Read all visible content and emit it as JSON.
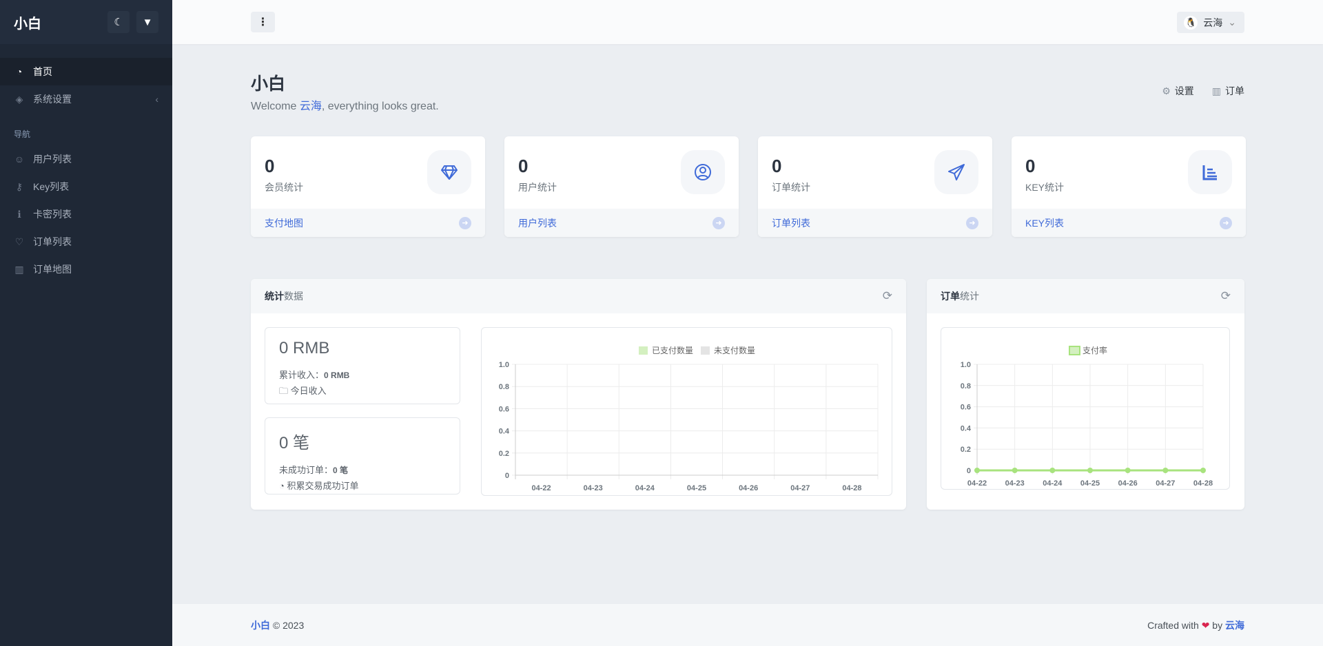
{
  "sidebar": {
    "logo": "小白",
    "theme_icon": "moon-icon",
    "brush_icon": "brush-icon",
    "items": [
      {
        "label": "首页",
        "icon": "dashboard-icon",
        "active": true
      },
      {
        "label": "系统设置",
        "icon": "layers-icon"
      }
    ],
    "section": "导航",
    "nav": [
      {
        "label": "用户列表",
        "icon": "users-icon"
      },
      {
        "label": "Key列表",
        "icon": "key-icon"
      },
      {
        "label": "卡密列表",
        "icon": "info-icon"
      },
      {
        "label": "订单列表",
        "icon": "heart-icon"
      },
      {
        "label": "订单地图",
        "icon": "map-icon"
      }
    ]
  },
  "topbar": {
    "user": "云海"
  },
  "header": {
    "title": "小白",
    "welcome_pre": "Welcome ",
    "welcome_name": "云海",
    "welcome_post": ", everything looks great.",
    "actions": [
      "设置",
      "订单"
    ]
  },
  "cards": [
    {
      "value": "0",
      "label": "会员统计",
      "link": "支付地图",
      "icon": "diamond-icon"
    },
    {
      "value": "0",
      "label": "用户统计",
      "link": "用户列表",
      "icon": "user-circle-icon"
    },
    {
      "value": "0",
      "label": "订单统计",
      "link": "订单列表",
      "icon": "paper-plane-icon"
    },
    {
      "value": "0",
      "label": "KEY统计",
      "link": "KEY列表",
      "icon": "bar-list-icon"
    }
  ],
  "stats_panel": {
    "title_bold": "统计",
    "title_rest": "数据",
    "income": {
      "big": "0 RMB",
      "line_label": "累计收入：",
      "line_value": "0 RMB",
      "sub": "今日收入"
    },
    "orders": {
      "big": "0 笔",
      "line_label": "未成功订单：",
      "line_value": "0 笔",
      "sub": "积累交易成功订单"
    }
  },
  "order_panel": {
    "title_bold": "订单",
    "title_rest": "统计"
  },
  "footer": {
    "brand": "小白",
    "copy": " © 2023",
    "crafted": "Crafted with",
    "by": " by ",
    "author": "云海"
  },
  "colors": {
    "accent": "#3f6ad8",
    "paid": "#d4f0c0",
    "unpaid": "#e4e4e4",
    "rate": "#a8e37e"
  },
  "chart_data": [
    {
      "type": "bar",
      "categories": [
        "04-22",
        "04-23",
        "04-24",
        "04-25",
        "04-26",
        "04-27",
        "04-28"
      ],
      "series": [
        {
          "name": "已支付数量",
          "values": [
            0,
            0,
            0,
            0,
            0,
            0,
            0
          ]
        },
        {
          "name": "未支付数量",
          "values": [
            0,
            0,
            0,
            0,
            0,
            0,
            0
          ]
        }
      ],
      "ylim": [
        0,
        1
      ],
      "yticks": [
        "0",
        "0.2",
        "0.4",
        "0.6",
        "0.8",
        "1.0"
      ],
      "grid": true,
      "legend": "top"
    },
    {
      "type": "line",
      "categories": [
        "04-22",
        "04-23",
        "04-24",
        "04-25",
        "04-26",
        "04-27",
        "04-28"
      ],
      "series": [
        {
          "name": "支付率",
          "values": [
            0,
            0,
            0,
            0,
            0,
            0,
            0
          ]
        }
      ],
      "ylim": [
        0,
        1
      ],
      "yticks": [
        "0",
        "0.2",
        "0.4",
        "0.6",
        "0.8",
        "1.0"
      ],
      "grid": true,
      "legend": "top"
    }
  ]
}
